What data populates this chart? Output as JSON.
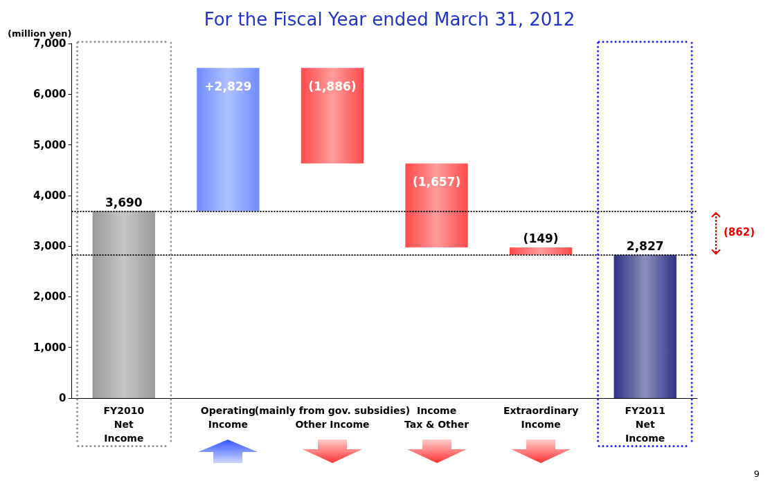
{
  "chart_data": {
    "type": "bar",
    "title": "For the Fiscal Year ended March 31, 2012",
    "ylabel": "(million yen)",
    "categories": [
      "FY2010\nNet\nIncome",
      "Operating\nIncome",
      "(mainly from gov. subsidies)\nOther Income",
      "Income\nTax & Other",
      "Extraordinary\nIncome",
      "FY2011\nNet\nIncome"
    ],
    "values": [
      3690,
      2829,
      -1886,
      -1657,
      -149,
      2827
    ],
    "base": [
      0,
      3690,
      6519,
      4633,
      2976,
      0
    ],
    "colors": [
      "#9a9a9a",
      "#6f8cff",
      "#ff4a4a",
      "#ff4a4a",
      "#ff4a4a",
      "#2e3385"
    ],
    "value_labels": [
      "3,690",
      "+2,829",
      "(1,886)",
      "(1,657)",
      "(149)",
      "2,827"
    ],
    "ylim": [
      0,
      7000
    ],
    "yticks": [
      0,
      {
        "value": 1000,
        "label": "1,000"
      },
      {
        "value": 2000,
        "label": "2,000"
      },
      {
        "value": 3000,
        "label": "3,000"
      },
      {
        "value": 4000,
        "label": "4,000"
      },
      {
        "value": 5000,
        "label": "5,000"
      },
      {
        "value": 6000,
        "label": "6,000"
      },
      {
        "value": 7000,
        "label": "7,000"
      }
    ],
    "ref_lines": [
      {
        "axis": "y",
        "value": 3690,
        "line_style": "dotted",
        "color": "#000000"
      },
      {
        "axis": "y",
        "value": 2827,
        "line_style": "dotted",
        "color": "#000000"
      }
    ],
    "annotations": [
      "(862)",
      "9"
    ],
    "grid": false
  }
}
